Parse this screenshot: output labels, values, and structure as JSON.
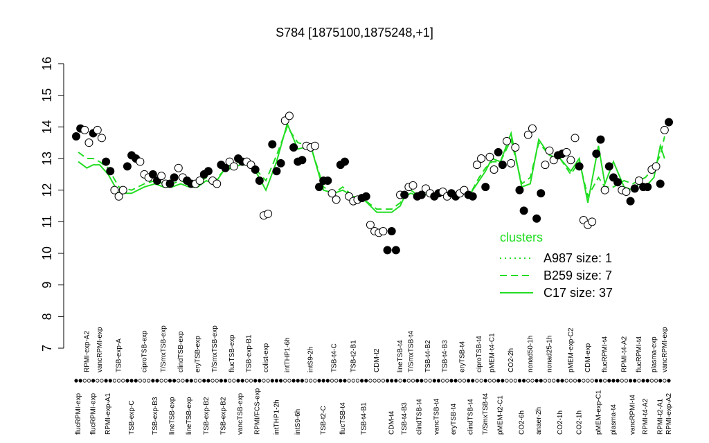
{
  "chart_data": {
    "type": "strip",
    "title": "S784 [1875100,1875248,+1]",
    "ylim": [
      7,
      16
    ],
    "yticks": [
      7,
      8,
      9,
      10,
      11,
      12,
      13,
      14,
      15,
      16
    ],
    "point_fills": [
      "#000000",
      "#ffffff"
    ],
    "groups": [
      {
        "label": "flucRPMI-exp",
        "fill": 0,
        "values": [
          13.7,
          13.95
        ]
      },
      {
        "label": "RPMI-exp-A2",
        "fill": 1,
        "values": [
          13.9,
          13.5
        ]
      },
      {
        "label": "flucRPMI-exp",
        "fill": 0,
        "values": [
          13.8
        ]
      },
      {
        "label": "vancRPMI-exp",
        "fill": 1,
        "values": [
          13.9,
          13.65
        ]
      },
      {
        "label": "RPMI-exp-A1",
        "fill": 0,
        "values": [
          12.9,
          12.6
        ]
      },
      {
        "label": "TSB-exp-A",
        "fill": 1,
        "values": [
          12.0,
          11.8,
          12.0
        ]
      },
      {
        "label": "TSB-exp-C",
        "fill": 0,
        "values": [
          12.75,
          13.1,
          13.0
        ]
      },
      {
        "label": "ciproTSB-exp",
        "fill": 1,
        "values": [
          12.9,
          12.5,
          12.4
        ]
      },
      {
        "label": "TSB-exp-B3",
        "fill": 0,
        "values": [
          12.5,
          12.3
        ]
      },
      {
        "label": "T/SmxTSB-exp",
        "fill": 1,
        "values": [
          12.45,
          12.2
        ]
      },
      {
        "label": "lineTSB-exp",
        "fill": 0,
        "values": [
          12.2,
          12.4
        ]
      },
      {
        "label": "clindTSB-exp",
        "fill": 1,
        "values": [
          12.7,
          12.4
        ]
      },
      {
        "label": "lineTSB-exp",
        "fill": 0,
        "values": [
          12.3,
          12.2
        ]
      },
      {
        "label": "eryTSB-exp",
        "fill": 1,
        "values": [
          12.2,
          12.3
        ]
      },
      {
        "label": "TSB-exp-B2",
        "fill": 0,
        "values": [
          12.5,
          12.6
        ]
      },
      {
        "label": "T/SmxTSB-exp",
        "fill": 1,
        "values": [
          12.3,
          12.2
        ]
      },
      {
        "label": "TSB-exp-B2",
        "fill": 0,
        "values": [
          12.8,
          12.7
        ]
      },
      {
        "label": "flucTSB-exp",
        "fill": 1,
        "values": [
          12.9,
          12.75
        ]
      },
      {
        "label": "vancTSB-exp",
        "fill": 0,
        "values": [
          13.0,
          12.9
        ]
      },
      {
        "label": "TSB-exp-B1",
        "fill": 1,
        "values": [
          12.9,
          12.8
        ]
      },
      {
        "label": "RPMI/FCS-exp",
        "fill": 0,
        "values": [
          12.65,
          12.3
        ]
      },
      {
        "label": "colist-exp",
        "fill": 1,
        "values": [
          11.2,
          11.25
        ]
      },
      {
        "label": "intTHP1-2h",
        "fill": 0,
        "values": [
          13.45,
          12.6,
          12.85
        ]
      },
      {
        "label": "intTHP1-6h",
        "fill": 1,
        "values": [
          14.2,
          14.35
        ]
      },
      {
        "label": "intS9-6h",
        "fill": 0,
        "values": [
          13.35,
          12.9,
          12.95
        ]
      },
      {
        "label": "intS9-2h",
        "fill": 1,
        "values": [
          13.4,
          13.35,
          13.4
        ]
      },
      {
        "label": "TSB-t2-C",
        "fill": 0,
        "values": [
          12.1,
          12.3,
          12.3
        ]
      },
      {
        "label": "TSB-t4-C",
        "fill": 1,
        "values": [
          11.9,
          11.7
        ]
      },
      {
        "label": "flucTSB-t4",
        "fill": 0,
        "values": [
          12.8,
          12.9
        ]
      },
      {
        "label": "TSB-t2-B1",
        "fill": 1,
        "values": [
          11.8,
          11.65,
          11.7
        ]
      },
      {
        "label": "TSB-t4-B1",
        "fill": 0,
        "values": [
          11.75,
          11.8
        ]
      },
      {
        "label": "CDM-t2",
        "fill": 1,
        "values": [
          10.9,
          10.7,
          10.65,
          10.7
        ]
      },
      {
        "label": "CDM-t4",
        "fill": 0,
        "values": [
          10.1,
          10.7,
          10.1
        ]
      },
      {
        "label": "lineTSB-t4",
        "fill": 1,
        "values": [
          11.85
        ]
      },
      {
        "label": "TSB-t4-B3",
        "fill": 0,
        "values": [
          11.85
        ]
      },
      {
        "label": "T/SmxTSB-t4",
        "fill": 1,
        "values": [
          12.1,
          12.15
        ]
      },
      {
        "label": "clindTSB-t4",
        "fill": 0,
        "values": [
          11.8,
          11.85
        ]
      },
      {
        "label": "TSB-t4-B2",
        "fill": 1,
        "values": [
          12.05,
          11.9
        ]
      },
      {
        "label": "vancTSB-t4",
        "fill": 0,
        "values": [
          11.8,
          11.9
        ]
      },
      {
        "label": "TSB-t4-B3",
        "fill": 1,
        "values": [
          11.95,
          11.8
        ]
      },
      {
        "label": "eryTSB-t4",
        "fill": 0,
        "values": [
          11.9,
          11.8
        ]
      },
      {
        "label": "eryTSB-t4",
        "fill": 1,
        "values": [
          11.9,
          12.0
        ]
      },
      {
        "label": "clindTSB-t4",
        "fill": 0,
        "values": [
          11.85,
          11.8
        ]
      },
      {
        "label": "ciproTSB-t4",
        "fill": 1,
        "values": [
          12.8,
          13.0
        ]
      },
      {
        "label": "T/SmxTSB-t4",
        "fill": 0,
        "values": [
          12.1
        ]
      },
      {
        "label": "pMEM-t4-C1",
        "fill": 1,
        "values": [
          13.05,
          12.65
        ]
      },
      {
        "label": "pMEM-t2-C1",
        "fill": 0,
        "values": [
          13.2,
          12.8
        ]
      },
      {
        "label": "CO2-2h",
        "fill": 1,
        "values": [
          13.55,
          12.85,
          13.35
        ]
      },
      {
        "label": "CO2-6h",
        "fill": 0,
        "values": [
          12.0,
          11.35
        ]
      },
      {
        "label": "nonad50-1h",
        "fill": 1,
        "values": [
          13.75,
          13.95
        ]
      },
      {
        "label": "anaer-2h",
        "fill": 0,
        "values": [
          11.1,
          11.9
        ]
      },
      {
        "label": "nonad25-1h",
        "fill": 1,
        "values": [
          12.8,
          13.25,
          12.95
        ]
      },
      {
        "label": "CO2-1h",
        "fill": 0,
        "values": [
          13.1,
          13.15
        ]
      },
      {
        "label": "pMEM-exp-C2",
        "fill": 1,
        "values": [
          13.2,
          12.95,
          13.65
        ]
      },
      {
        "label": "CO2-1h",
        "fill": 0,
        "values": [
          12.75
        ]
      },
      {
        "label": "CDM-exp",
        "fill": 1,
        "values": [
          11.05,
          10.9,
          11.0
        ]
      },
      {
        "label": "pMEM-exp-C1",
        "fill": 0,
        "values": [
          13.15,
          13.6
        ]
      },
      {
        "label": "flucRPMI-t4",
        "fill": 1,
        "values": [
          12.0
        ]
      },
      {
        "label": "plasma-t4",
        "fill": 0,
        "values": [
          12.75,
          12.4,
          12.25
        ]
      },
      {
        "label": "RPMI-t4-A2",
        "fill": 1,
        "values": [
          12.0,
          11.95
        ]
      },
      {
        "label": "vancRPMI-t4",
        "fill": 0,
        "values": [
          11.65,
          12.05
        ]
      },
      {
        "label": "flucRPMI-t4",
        "fill": 1,
        "values": [
          12.3
        ]
      },
      {
        "label": "RPMI-t4-A2",
        "fill": 0,
        "values": [
          12.1,
          12.1
        ]
      },
      {
        "label": "plasma-exp",
        "fill": 1,
        "values": [
          12.65,
          12.75
        ]
      },
      {
        "label": "RPMI-t2-A1",
        "fill": 0,
        "values": [
          12.2
        ]
      },
      {
        "label": "vancRPMI-exp",
        "fill": 1,
        "values": [
          13.9
        ]
      },
      {
        "label": "RPMI-exp-A2",
        "fill": 0,
        "values": [
          14.15
        ]
      }
    ],
    "legend_title": "clusters",
    "lines_color": "#22dd22",
    "lines": [
      {
        "name": "A987 size: 1",
        "style": "dotted",
        "values": []
      },
      {
        "name": "B259 size: 7",
        "style": "dashed",
        "values": [
          13.2,
          13.0,
          13.0,
          12.9,
          12.7,
          12.1,
          12.0,
          12.2,
          12.3,
          12.2,
          12.2,
          12.3,
          12.2,
          12.2,
          12.4,
          12.3,
          12.6,
          12.8,
          12.9,
          12.9,
          12.6,
          12.3,
          13.1,
          14.0,
          13.5,
          13.4,
          12.1,
          11.9,
          12.1,
          11.8,
          11.7,
          11.4,
          11.4,
          11.6,
          11.8,
          12.0,
          11.8,
          11.9,
          11.9,
          11.9,
          11.9,
          12.0,
          11.9,
          12.4,
          12.7,
          12.9,
          12.9,
          13.6,
          12.2,
          12.4,
          13.5,
          13.1,
          13.0,
          12.5,
          12.9,
          11.8,
          12.4,
          12.1,
          12.1,
          12.3,
          12.2,
          12.3,
          12.4,
          12.7,
          13.1,
          13.7
        ]
      },
      {
        "name": "C17 size: 37",
        "style": "solid",
        "values": [
          12.9,
          12.7,
          12.8,
          12.8,
          12.5,
          11.9,
          11.9,
          12.1,
          12.2,
          12.1,
          12.1,
          12.2,
          12.1,
          12.1,
          12.3,
          12.2,
          12.6,
          12.7,
          12.8,
          12.8,
          12.5,
          12.0,
          12.9,
          14.1,
          13.3,
          13.4,
          12.0,
          11.9,
          12.0,
          11.8,
          11.7,
          11.3,
          11.3,
          11.5,
          11.8,
          11.9,
          11.8,
          11.9,
          11.9,
          11.9,
          11.9,
          12.0,
          11.9,
          12.3,
          12.6,
          13.0,
          12.9,
          13.8,
          12.1,
          12.2,
          13.6,
          13.1,
          13.0,
          12.6,
          13.0,
          11.6,
          13.4,
          12.2,
          12.9,
          12.1,
          12.0,
          12.2,
          12.1,
          12.4,
          13.4,
          13.0
        ]
      }
    ]
  }
}
